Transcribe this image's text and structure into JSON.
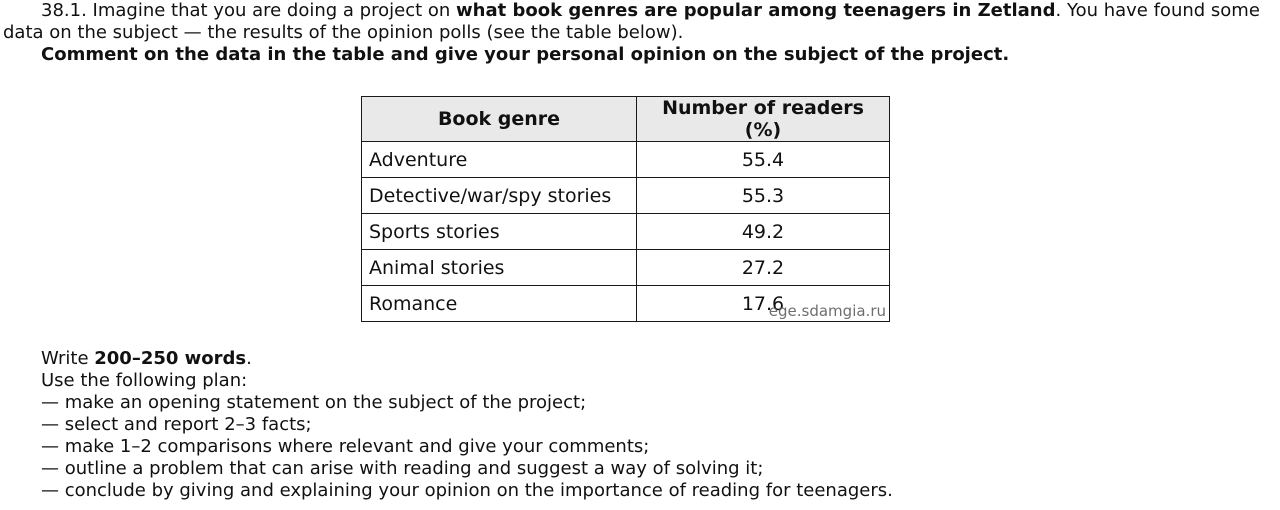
{
  "task": {
    "intro_part1": "38.1. Imagine that you are doing a project on ",
    "intro_bold": "what book genres are popular among teenagers in Zetland",
    "intro_part2": ". You have found some data on the subject — the results of the opinion polls (see the table below).",
    "instruction": "Comment on the data in the table and give your personal opinion on the subject of the project."
  },
  "table": {
    "headers": [
      "Book genre",
      "Number of readers (%)"
    ],
    "rows": [
      {
        "genre": "Adventure",
        "readers": "55.4"
      },
      {
        "genre": "Detective/war/spy stories",
        "readers": "55.3"
      },
      {
        "genre": "Sports stories",
        "readers": "49.2"
      },
      {
        "genre": "Animal stories",
        "readers": "27.2"
      },
      {
        "genre": "Romance",
        "readers": "17.6"
      }
    ],
    "watermark": "ege.sdamgia.ru"
  },
  "plan": {
    "write_prefix": "Write ",
    "word_count": "200–250 words",
    "write_suffix": ".",
    "use_plan": "Use the following plan:",
    "items": [
      "— make an opening statement on the subject of the project;",
      "— select and report 2–3 facts;",
      "— make 1–2 comparisons where relevant and give your comments;",
      "— outline a problem that can arise with reading and suggest a way of solving it;",
      "— conclude by giving and explaining your opinion on the importance of reading for teenagers."
    ]
  }
}
